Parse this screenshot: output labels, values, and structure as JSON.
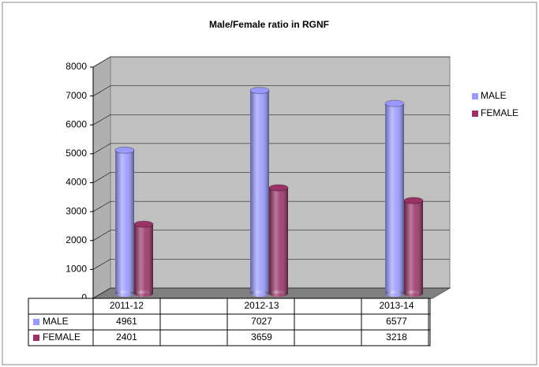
{
  "chart_data": {
    "type": "bar",
    "title": "Male/Female ratio in RGNF",
    "categories": [
      "2011-12",
      "2012-13",
      "2013-14"
    ],
    "series": [
      {
        "name": "MALE",
        "color": "#9999ff",
        "values": [
          4961,
          7027,
          6577
        ]
      },
      {
        "name": "FEMALE",
        "color": "#993366",
        "values": [
          2401,
          3659,
          3218
        ]
      }
    ],
    "ylim": [
      0,
      8000
    ],
    "yticks": [
      0,
      1000,
      2000,
      3000,
      4000,
      5000,
      6000,
      7000,
      8000
    ],
    "grid": true,
    "legend": "right"
  }
}
